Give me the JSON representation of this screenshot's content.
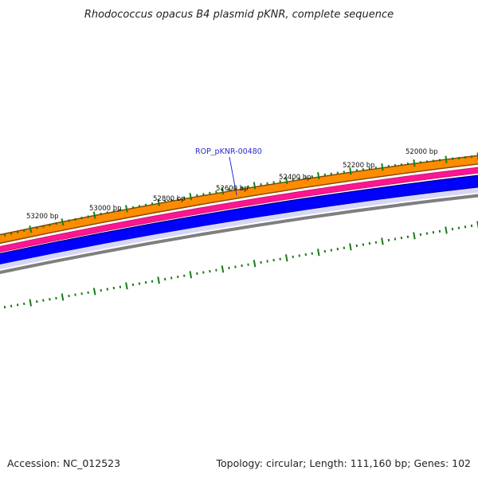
{
  "title": "Rhodococcus opacus B4 plasmid pKNR, complete sequence",
  "accession_text": "Accession: NC_012523",
  "summary_text": "Topology: circular; Length: 111,160 bp; Genes: 102",
  "genome": {
    "topology": "circular",
    "length_bp": 111160,
    "genes": 102
  },
  "tick_labels": [
    "53200 bp",
    "53000 bp",
    "52800 bp",
    "52600 bp",
    "52400 bp",
    "52200 bp",
    "52000 bp"
  ],
  "tick_positions_bp": [
    53200,
    53000,
    52800,
    52600,
    52400,
    52200,
    52000
  ],
  "gene_label": {
    "text": "ROP_pKNR-00480"
  },
  "tracks": [
    {
      "name": "cds-forward",
      "color": "#ff8c00"
    },
    {
      "name": "gene-track",
      "color": "#ff1493"
    },
    {
      "name": "cds-reverse",
      "color": "#0000ff"
    },
    {
      "name": "backbone",
      "color": "#808080"
    }
  ],
  "colors": {
    "ticks": "#1a7a1a",
    "label": "#2b2bd1"
  }
}
